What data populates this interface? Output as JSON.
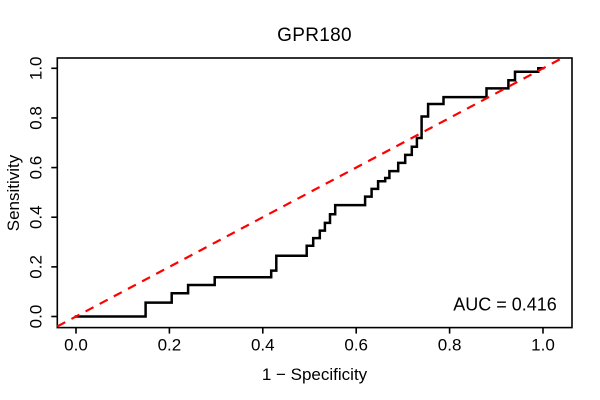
{
  "title": "GPR180",
  "auc_label": "AUC = 0.416",
  "colors": {
    "curve": "#000000",
    "diagonal": "#ff0000",
    "box": "#000000",
    "background": "#ffffff",
    "text": "#000000"
  },
  "chart_data": {
    "type": "line",
    "subtype": "roc-curve",
    "title": "GPR180",
    "xlabel": "1 − Specificity",
    "ylabel": "Sensitivity",
    "xlim": [
      0,
      1
    ],
    "ylim": [
      0,
      1
    ],
    "grid": false,
    "legend_position": "none",
    "annotation": "AUC = 0.416",
    "auc": 0.416,
    "x_ticks": [
      0.0,
      0.2,
      0.4,
      0.6,
      0.8,
      1.0
    ],
    "y_ticks": [
      0.0,
      0.2,
      0.4,
      0.6,
      0.8,
      1.0
    ],
    "x_tick_labels": [
      "0.0",
      "0.2",
      "0.4",
      "0.6",
      "0.8",
      "1.0"
    ],
    "y_tick_labels": [
      "0.0",
      "0.2",
      "0.4",
      "0.6",
      "0.8",
      "1.0"
    ],
    "series": [
      {
        "name": "ROC step curve",
        "color": "#000000",
        "style": "solid",
        "width": 2.5,
        "points": [
          [
            0.0,
            0.0
          ],
          [
            0.149,
            0.0
          ],
          [
            0.149,
            0.056
          ],
          [
            0.205,
            0.056
          ],
          [
            0.205,
            0.094
          ],
          [
            0.24,
            0.094
          ],
          [
            0.24,
            0.127
          ],
          [
            0.297,
            0.127
          ],
          [
            0.297,
            0.158
          ],
          [
            0.418,
            0.158
          ],
          [
            0.418,
            0.185
          ],
          [
            0.429,
            0.185
          ],
          [
            0.429,
            0.245
          ],
          [
            0.494,
            0.245
          ],
          [
            0.494,
            0.285
          ],
          [
            0.508,
            0.285
          ],
          [
            0.508,
            0.316
          ],
          [
            0.522,
            0.316
          ],
          [
            0.522,
            0.346
          ],
          [
            0.533,
            0.346
          ],
          [
            0.533,
            0.377
          ],
          [
            0.544,
            0.377
          ],
          [
            0.544,
            0.412
          ],
          [
            0.555,
            0.412
          ],
          [
            0.555,
            0.449
          ],
          [
            0.619,
            0.449
          ],
          [
            0.619,
            0.483
          ],
          [
            0.633,
            0.483
          ],
          [
            0.633,
            0.514
          ],
          [
            0.647,
            0.514
          ],
          [
            0.647,
            0.545
          ],
          [
            0.662,
            0.545
          ],
          [
            0.662,
            0.558
          ],
          [
            0.671,
            0.558
          ],
          [
            0.671,
            0.586
          ],
          [
            0.69,
            0.586
          ],
          [
            0.69,
            0.619
          ],
          [
            0.705,
            0.619
          ],
          [
            0.705,
            0.651
          ],
          [
            0.719,
            0.651
          ],
          [
            0.719,
            0.684
          ],
          [
            0.73,
            0.684
          ],
          [
            0.73,
            0.719
          ],
          [
            0.74,
            0.719
          ],
          [
            0.74,
            0.806
          ],
          [
            0.754,
            0.806
          ],
          [
            0.754,
            0.856
          ],
          [
            0.787,
            0.856
          ],
          [
            0.787,
            0.884
          ],
          [
            0.879,
            0.884
          ],
          [
            0.879,
            0.919
          ],
          [
            0.926,
            0.919
          ],
          [
            0.926,
            0.952
          ],
          [
            0.94,
            0.952
          ],
          [
            0.94,
            0.986
          ],
          [
            0.99,
            0.986
          ],
          [
            0.99,
            1.0
          ],
          [
            1.0,
            1.0
          ]
        ]
      },
      {
        "name": "Chance diagonal",
        "color": "#ff0000",
        "style": "dashed",
        "width": 2.2,
        "extend_to_box": true,
        "points": [
          [
            0,
            0
          ],
          [
            1,
            1
          ]
        ]
      }
    ]
  }
}
